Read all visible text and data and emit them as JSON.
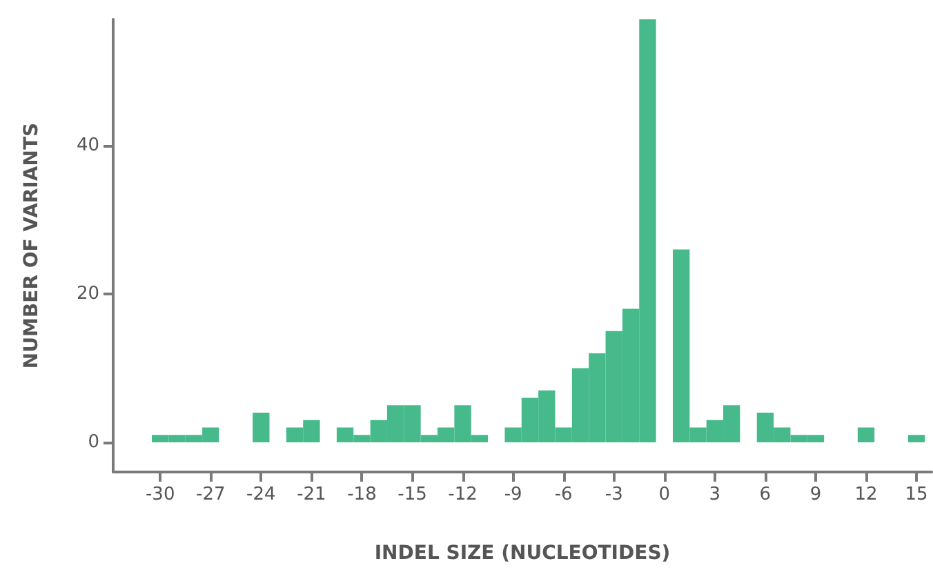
{
  "chart_data": {
    "type": "histogram",
    "xlabel": "INDEL SIZE (NUCLEOTIDES)",
    "ylabel": "NUMBER OF VARIANTS",
    "color": "#47ba8c",
    "bins": [
      -30.5,
      -29.5,
      -28.5,
      -27.5,
      -26.5,
      -25.5,
      -24.5,
      -23.5,
      -22.5,
      -21.5,
      -20.5,
      -19.5,
      -18.5,
      -17.5,
      -16.5,
      -15.5,
      -14.5,
      -13.5,
      -12.5,
      -11.5,
      -10.5,
      -9.5,
      -8.5,
      -7.5,
      -6.5,
      -5.5,
      -4.5,
      -3.5,
      -2.5,
      -1.5,
      -0.5,
      0.5,
      1.5,
      2.5,
      3.5,
      4.5,
      5.5,
      6.5,
      7.5,
      8.5,
      9.5,
      10.5,
      11.5,
      12.5,
      13.5,
      14.5,
      15.5
    ],
    "values": [
      1,
      1,
      1,
      2,
      0,
      0,
      4,
      0,
      2,
      3,
      0,
      2,
      1,
      3,
      5,
      5,
      1,
      2,
      5,
      1,
      0,
      2,
      6,
      7,
      2,
      10,
      12,
      15,
      18,
      57,
      0,
      26,
      2,
      3,
      5,
      0,
      4,
      2,
      1,
      1,
      0,
      0,
      2,
      0,
      0,
      1
    ],
    "xlim": [
      -32.8,
      15.9
    ],
    "ylim": [
      -4,
      57
    ],
    "xticks": [
      -30,
      -27,
      -24,
      -21,
      -18,
      -15,
      -12,
      -9,
      -6,
      -3,
      0,
      3,
      6,
      9,
      12,
      15
    ],
    "yticks": [
      0,
      20,
      40
    ],
    "grid": false
  }
}
